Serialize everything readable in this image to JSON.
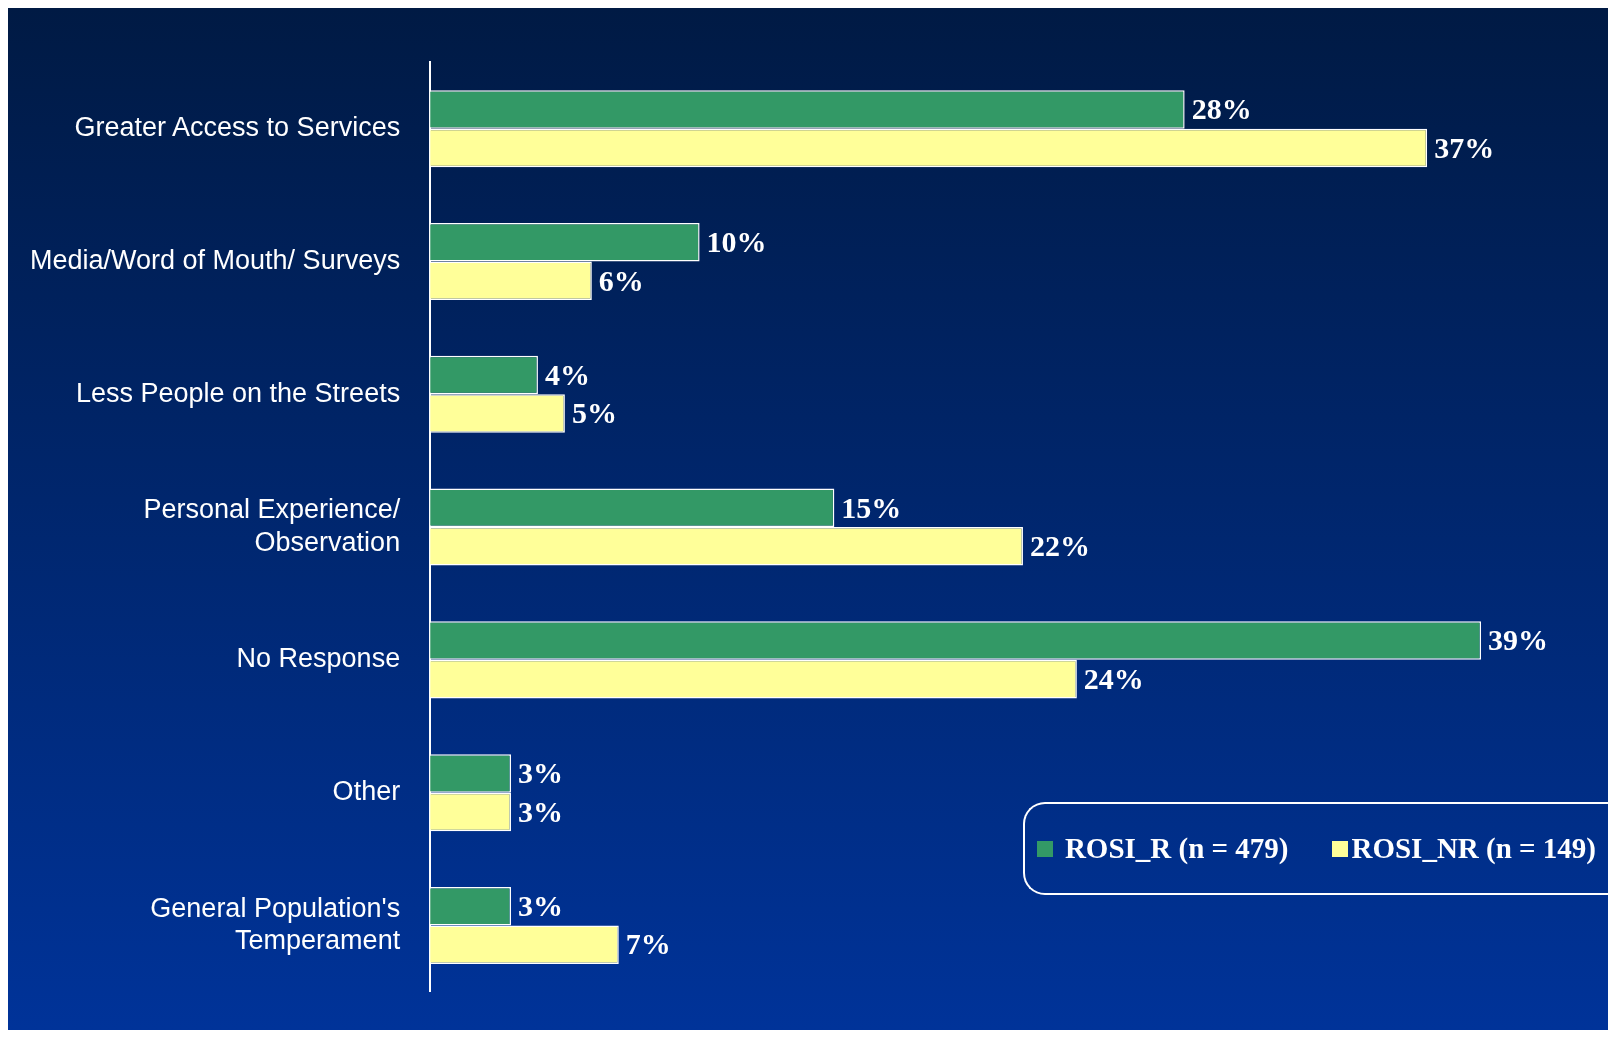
{
  "chart_data": {
    "type": "bar",
    "orientation": "horizontal",
    "categories": [
      "Greater Access to Services",
      "Media/Word of Mouth/ Surveys",
      "Less People on the Streets",
      "Personal Experience/\nObservation",
      "No Response",
      "Other",
      "General Population's\nTemperament"
    ],
    "series": [
      {
        "name": "ROSI_R (n = 479)",
        "color": "#339966",
        "values": [
          28,
          10,
          4,
          15,
          39,
          3,
          3
        ],
        "value_labels": [
          "28%",
          "10%",
          "4%",
          "15%",
          "39%",
          "3%",
          "3%"
        ]
      },
      {
        "name": "ROSI_NR (n = 149)",
        "color": "#ffff99",
        "values": [
          37,
          6,
          5,
          22,
          24,
          3,
          7
        ],
        "value_labels": [
          "37%",
          "6%",
          "5%",
          "22%",
          "24%",
          "3%",
          "7%"
        ]
      }
    ],
    "legend": "bottom right"
  }
}
